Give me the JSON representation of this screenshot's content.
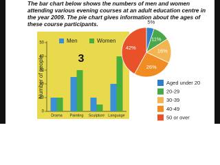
{
  "header": {
    "text": "The bar chart below shows the numbers of men and women attending various evening courses at an adult education centre in the year 2009. The pie chart gives information about the ages of these course participants."
  },
  "chart_data": [
    {
      "type": "bar",
      "annotation": "3",
      "ylabel": "Number of people",
      "categories": [
        "Drama",
        "Painting",
        "Sculpture",
        "Language"
      ],
      "series": [
        {
          "name": "Men",
          "color": "#3a8fd8",
          "values": [
            10,
            25,
            10,
            20
          ]
        },
        {
          "name": "Women",
          "color": "#4aae3c",
          "values": [
            10,
            30,
            5,
            40
          ]
        }
      ],
      "ylim": [
        0,
        50
      ],
      "yticks": [
        0,
        10,
        20,
        30,
        40,
        50
      ],
      "background": "#e8da4c"
    },
    {
      "type": "pie",
      "categories": [
        "Aged under 20",
        "20-29",
        "30-39",
        "40-49",
        "50 or over"
      ],
      "values": [
        5,
        11,
        16,
        26,
        42
      ],
      "value_labels": [
        "5%",
        "11%",
        "16%",
        "26%",
        "42%"
      ],
      "colors": [
        "#2f7fcb",
        "#4ba84a",
        "#f3b552",
        "#f08c22",
        "#e9512b"
      ]
    }
  ]
}
